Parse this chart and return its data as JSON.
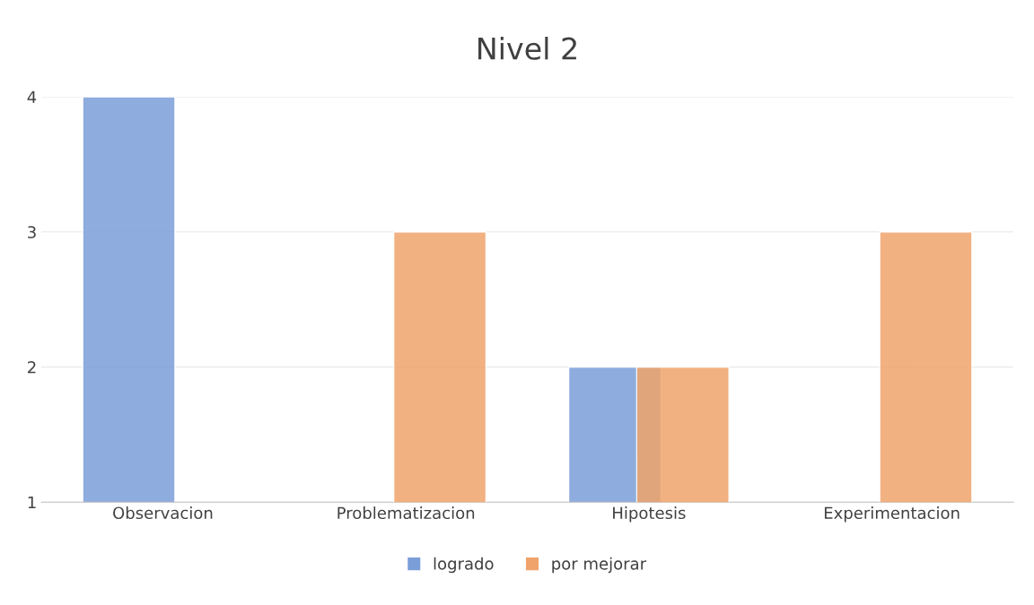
{
  "chart_data": {
    "type": "bar",
    "title": "Nivel 2",
    "categories": [
      "Observacion",
      "Problematizacion",
      "Hipotesis",
      "Experimentacion"
    ],
    "series": [
      {
        "name": "logrado",
        "color": "#7b9ed8",
        "values": [
          4,
          null,
          2,
          null
        ]
      },
      {
        "name": "por mejorar",
        "color": "#f0a46c",
        "values": [
          null,
          3,
          2,
          3
        ]
      }
    ],
    "ylim": [
      1,
      4
    ],
    "yticks": [
      1,
      2,
      3,
      4
    ],
    "grid": "y",
    "legend": "bottom"
  }
}
